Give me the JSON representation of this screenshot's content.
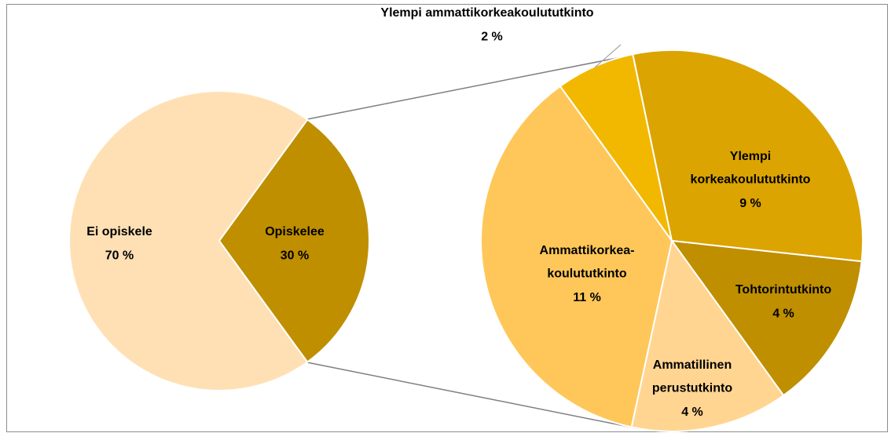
{
  "chart_data": [
    {
      "type": "pie",
      "categories": [
        [
          "Ei opiskele"
        ],
        [
          "Opiskelee"
        ]
      ],
      "values": [
        70,
        30
      ],
      "value_labels": [
        "70 %",
        "30 %"
      ],
      "colors": [
        "#ffe0b5",
        "#bf8f00"
      ]
    },
    {
      "type": "pie",
      "categories": [
        [
          "Ylempi ammattikorkeakoulututkinto"
        ],
        [
          "Ylempi",
          "korkeakoulututkinto"
        ],
        [
          "Tohtorintutkinto"
        ],
        [
          "Ammatillinen",
          "perustutkinto"
        ],
        [
          "Ammattikorkea-",
          "koulututkinto"
        ]
      ],
      "values": [
        2,
        9,
        4,
        4,
        11
      ],
      "value_labels": [
        "2 %",
        "9 %",
        "4 %",
        "4 %",
        "11 %"
      ],
      "colors": [
        "#f2b800",
        "#dba400",
        "#bf8f00",
        "#ffd591",
        "#ffc759"
      ]
    }
  ]
}
